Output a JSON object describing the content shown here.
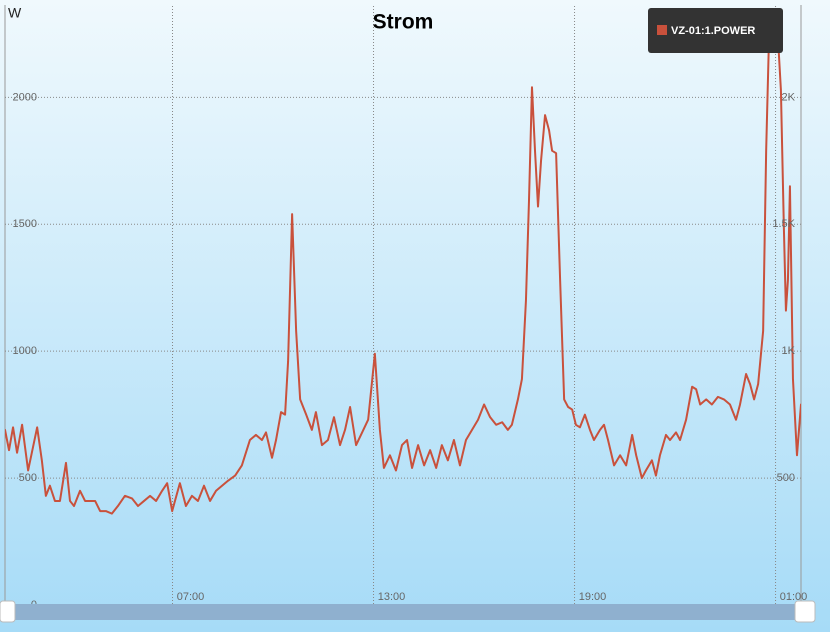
{
  "chart_data": {
    "type": "line",
    "title": "Strom",
    "y_label": "W",
    "x": [
      2.0,
      2.12,
      2.24,
      2.36,
      2.51,
      2.69,
      2.96,
      3.1,
      3.22,
      3.34,
      3.49,
      3.64,
      3.82,
      3.94,
      4.06,
      4.24,
      4.39,
      4.69,
      4.84,
      5.01,
      5.19,
      5.37,
      5.58,
      5.79,
      5.97,
      6.15,
      6.33,
      6.51,
      6.69,
      6.84,
      6.99,
      7.22,
      7.4,
      7.58,
      7.76,
      7.94,
      8.12,
      8.3,
      8.66,
      8.87,
      9.07,
      9.31,
      9.49,
      9.67,
      9.79,
      9.97,
      10.09,
      10.24,
      10.36,
      10.45,
      10.57,
      10.69,
      10.81,
      10.99,
      11.16,
      11.28,
      11.46,
      11.64,
      11.82,
      12.0,
      12.15,
      12.3,
      12.48,
      12.66,
      12.84,
      13.04,
      13.19,
      13.31,
      13.49,
      13.67,
      13.85,
      14.0,
      14.15,
      14.33,
      14.51,
      14.69,
      14.87,
      15.04,
      15.22,
      15.4,
      15.58,
      15.76,
      15.94,
      16.12,
      16.3,
      16.48,
      16.66,
      16.84,
      17.01,
      17.13,
      17.31,
      17.43,
      17.55,
      17.64,
      17.73,
      17.82,
      17.91,
      18.0,
      18.12,
      18.24,
      18.33,
      18.45,
      18.57,
      18.69,
      18.81,
      18.93,
      19.04,
      19.16,
      19.31,
      19.46,
      19.58,
      19.76,
      19.88,
      20.0,
      20.18,
      20.36,
      20.54,
      20.72,
      20.84,
      21.01,
      21.13,
      21.31,
      21.43,
      21.55,
      21.73,
      21.85,
      22.03,
      22.15,
      22.33,
      22.51,
      22.63,
      22.75,
      22.93,
      23.1,
      23.28,
      23.46,
      23.64,
      23.82,
      23.94,
      24.12,
      24.24,
      24.36,
      24.48,
      24.63,
      24.72,
      24.81,
      24.9,
      25.01,
      25.07,
      25.16,
      25.25,
      25.31,
      25.37,
      25.43,
      25.52,
      25.64,
      25.76
    ],
    "series": [
      {
        "name": "VZ-01:1.POWER",
        "color": "#c9513c",
        "values": [
          690,
          610,
          700,
          600,
          710,
          530,
          700,
          570,
          430,
          470,
          410,
          410,
          560,
          410,
          390,
          450,
          410,
          410,
          370,
          370,
          360,
          390,
          430,
          420,
          390,
          410,
          430,
          410,
          450,
          480,
          370,
          480,
          390,
          430,
          410,
          470,
          410,
          450,
          490,
          510,
          550,
          650,
          670,
          650,
          680,
          580,
          650,
          760,
          750,
          960,
          1540,
          1080,
          810,
          750,
          690,
          760,
          630,
          650,
          740,
          630,
          690,
          780,
          630,
          680,
          730,
          990,
          690,
          540,
          590,
          530,
          630,
          650,
          540,
          630,
          550,
          610,
          540,
          630,
          570,
          650,
          550,
          650,
          690,
          730,
          790,
          740,
          710,
          720,
          690,
          710,
          810,
          890,
          1200,
          1590,
          2040,
          1790,
          1570,
          1750,
          1930,
          1870,
          1790,
          1780,
          1280,
          810,
          780,
          770,
          710,
          700,
          750,
          690,
          650,
          690,
          710,
          650,
          550,
          590,
          550,
          670,
          590,
          500,
          530,
          570,
          510,
          590,
          670,
          650,
          680,
          650,
          730,
          860,
          850,
          790,
          810,
          790,
          820,
          810,
          790,
          730,
          790,
          910,
          870,
          810,
          870,
          1080,
          1790,
          2260,
          2300,
          2260,
          2240,
          2030,
          1480,
          1160,
          1280,
          1650,
          890,
          590,
          790
        ]
      }
    ],
    "xlim": [
      2,
      25.76
    ],
    "xticks": [
      {
        "value": 7,
        "label": "07:00"
      },
      {
        "value": 13,
        "label": "13:00"
      },
      {
        "value": 19,
        "label": "19:00"
      },
      {
        "value": 25,
        "label": "01:00"
      }
    ],
    "ylim": [
      0,
      2360
    ],
    "yticks": [
      0,
      500,
      1000,
      1500,
      2000
    ],
    "y2lim": [
      0,
      2360
    ],
    "y2ticks": [
      500,
      {
        "value": 1000,
        "label": "1K"
      },
      {
        "value": 1500,
        "label": "1.5K"
      },
      {
        "value": 2000,
        "label": "2K"
      }
    ],
    "grid": true,
    "legend": "top-right"
  }
}
